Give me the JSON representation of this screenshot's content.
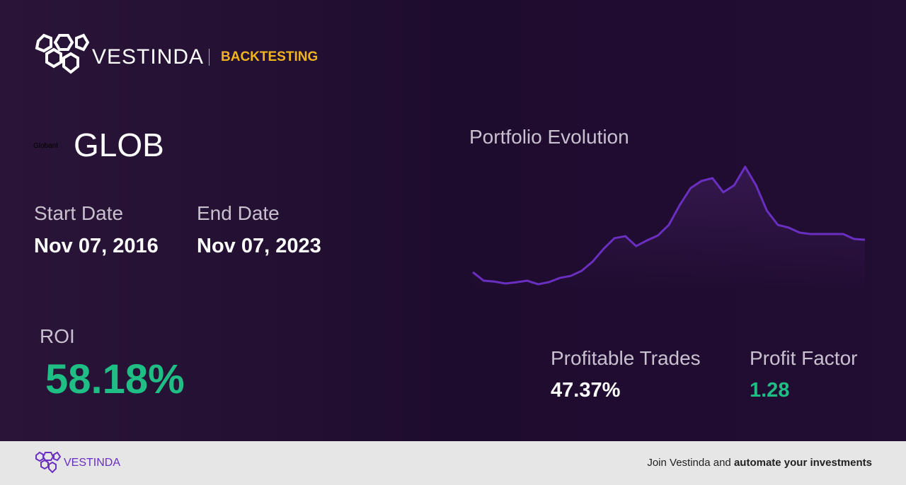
{
  "header": {
    "brand": "VESTINDA",
    "section": "BACKTESTING"
  },
  "ticker": {
    "logo_text": "Globant",
    "symbol": "GLOB"
  },
  "start_date": {
    "label": "Start Date",
    "value": "Nov 07, 2016"
  },
  "end_date": {
    "label": "End Date",
    "value": "Nov 07, 2023"
  },
  "roi": {
    "label": "ROI",
    "value": "58.18%"
  },
  "profitable_trades": {
    "label": "Profitable Trades",
    "value": "47.37%"
  },
  "profit_factor": {
    "label": "Profit Factor",
    "value": "1.28"
  },
  "footer": {
    "brand": "VESTINDA",
    "text": "Join Vestinda and",
    "bold": "automate your investments"
  },
  "chart_data": {
    "type": "line",
    "title": "Portfolio Evolution",
    "color": "#6a2fc0",
    "values": [
      13.9,
      7.2,
      6.5,
      5,
      6,
      7.2,
      4.4,
      6.1,
      9.4,
      11,
      15,
      22.2,
      32.2,
      40.6,
      42.2,
      34.4,
      38.9,
      42.8,
      51.1,
      66.7,
      80,
      85.6,
      87.8,
      76.7,
      82.2,
      96.7,
      82.2,
      62.2,
      51.1,
      48.9,
      45,
      43.9,
      43.9,
      43.9,
      43.9,
      40,
      39.4
    ],
    "ylim": [
      0,
      100
    ]
  }
}
